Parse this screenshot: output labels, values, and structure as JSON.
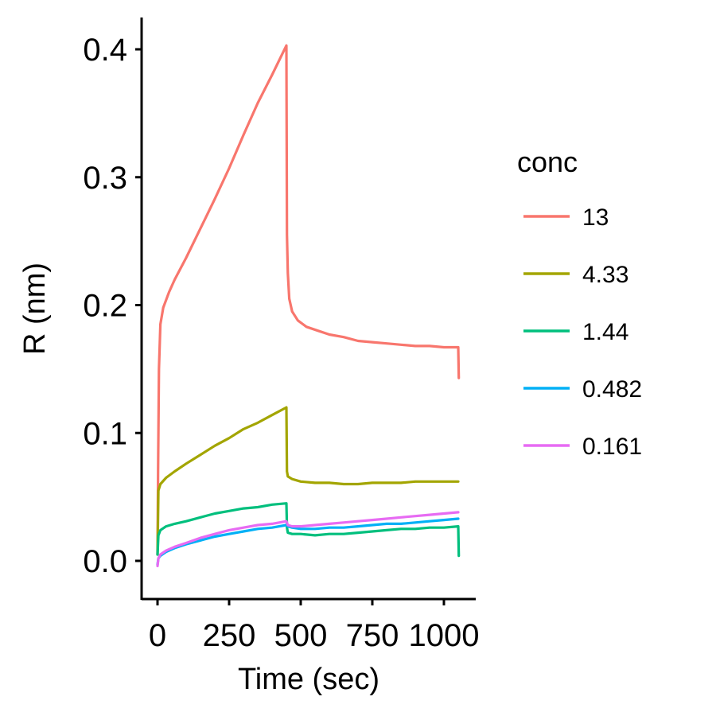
{
  "chart_data": {
    "type": "line",
    "xlabel": "Time (sec)",
    "ylabel": "R (nm)",
    "xlim": [
      -20,
      1110
    ],
    "ylim": [
      -0.03,
      0.425
    ],
    "x_ticks": [
      0,
      250,
      500,
      750,
      1000
    ],
    "x_tick_labels": [
      "0",
      "250",
      "500",
      "750",
      "1000"
    ],
    "y_ticks": [
      0.0,
      0.1,
      0.2,
      0.3,
      0.4
    ],
    "y_tick_labels": [
      "0.0",
      "0.1",
      "0.2",
      "0.3",
      "0.4"
    ],
    "grid": false,
    "legend": {
      "title": "conc",
      "position": "right"
    },
    "series": [
      {
        "name": "13",
        "color": "#F8766D",
        "x": [
          0,
          2,
          5,
          10,
          20,
          40,
          60,
          100,
          150,
          200,
          250,
          300,
          350,
          400,
          450,
          452,
          455,
          460,
          470,
          490,
          520,
          560,
          600,
          650,
          700,
          750,
          800,
          850,
          900,
          950,
          1000,
          1050,
          1052
        ],
        "y": [
          0.005,
          0.07,
          0.15,
          0.185,
          0.198,
          0.21,
          0.22,
          0.237,
          0.26,
          0.283,
          0.307,
          0.333,
          0.358,
          0.38,
          0.403,
          0.255,
          0.225,
          0.205,
          0.195,
          0.188,
          0.183,
          0.18,
          0.177,
          0.175,
          0.172,
          0.171,
          0.17,
          0.169,
          0.168,
          0.168,
          0.167,
          0.167,
          0.143
        ]
      },
      {
        "name": "4.33",
        "color": "#A3A500",
        "x": [
          0,
          3,
          10,
          30,
          60,
          100,
          150,
          200,
          250,
          300,
          350,
          400,
          450,
          452,
          455,
          470,
          500,
          550,
          600,
          650,
          700,
          750,
          800,
          850,
          900,
          950,
          1000,
          1050
        ],
        "y": [
          0.005,
          0.055,
          0.06,
          0.065,
          0.07,
          0.076,
          0.083,
          0.09,
          0.096,
          0.103,
          0.108,
          0.114,
          0.12,
          0.07,
          0.066,
          0.064,
          0.062,
          0.061,
          0.061,
          0.06,
          0.06,
          0.061,
          0.061,
          0.061,
          0.062,
          0.062,
          0.062,
          0.062
        ]
      },
      {
        "name": "1.44",
        "color": "#00BF7D",
        "x": [
          0,
          3,
          10,
          30,
          60,
          100,
          150,
          200,
          250,
          300,
          350,
          400,
          450,
          452,
          455,
          470,
          500,
          550,
          600,
          650,
          700,
          750,
          800,
          850,
          900,
          950,
          1000,
          1050,
          1052
        ],
        "y": [
          0.005,
          0.02,
          0.024,
          0.027,
          0.029,
          0.031,
          0.034,
          0.037,
          0.039,
          0.041,
          0.042,
          0.044,
          0.045,
          0.026,
          0.022,
          0.021,
          0.021,
          0.02,
          0.021,
          0.021,
          0.022,
          0.023,
          0.024,
          0.025,
          0.025,
          0.026,
          0.026,
          0.027,
          0.004
        ]
      },
      {
        "name": "0.482",
        "color": "#00B0F6",
        "x": [
          0,
          3,
          10,
          30,
          60,
          100,
          150,
          200,
          250,
          300,
          350,
          400,
          450,
          455,
          470,
          500,
          550,
          600,
          650,
          700,
          750,
          800,
          850,
          900,
          950,
          1000,
          1050
        ],
        "y": [
          -0.003,
          0.002,
          0.004,
          0.007,
          0.01,
          0.013,
          0.016,
          0.019,
          0.021,
          0.023,
          0.025,
          0.026,
          0.028,
          0.027,
          0.026,
          0.025,
          0.025,
          0.026,
          0.026,
          0.027,
          0.028,
          0.029,
          0.029,
          0.03,
          0.031,
          0.032,
          0.033
        ]
      },
      {
        "name": "0.161",
        "color": "#E76BF3",
        "x": [
          0,
          3,
          10,
          30,
          60,
          100,
          150,
          200,
          250,
          300,
          350,
          400,
          450,
          455,
          470,
          500,
          550,
          600,
          650,
          700,
          750,
          800,
          850,
          900,
          950,
          1000,
          1050
        ],
        "y": [
          -0.004,
          0.002,
          0.005,
          0.008,
          0.011,
          0.014,
          0.018,
          0.021,
          0.024,
          0.026,
          0.028,
          0.029,
          0.031,
          0.028,
          0.027,
          0.027,
          0.028,
          0.029,
          0.03,
          0.031,
          0.032,
          0.033,
          0.034,
          0.035,
          0.036,
          0.037,
          0.038
        ]
      }
    ]
  }
}
